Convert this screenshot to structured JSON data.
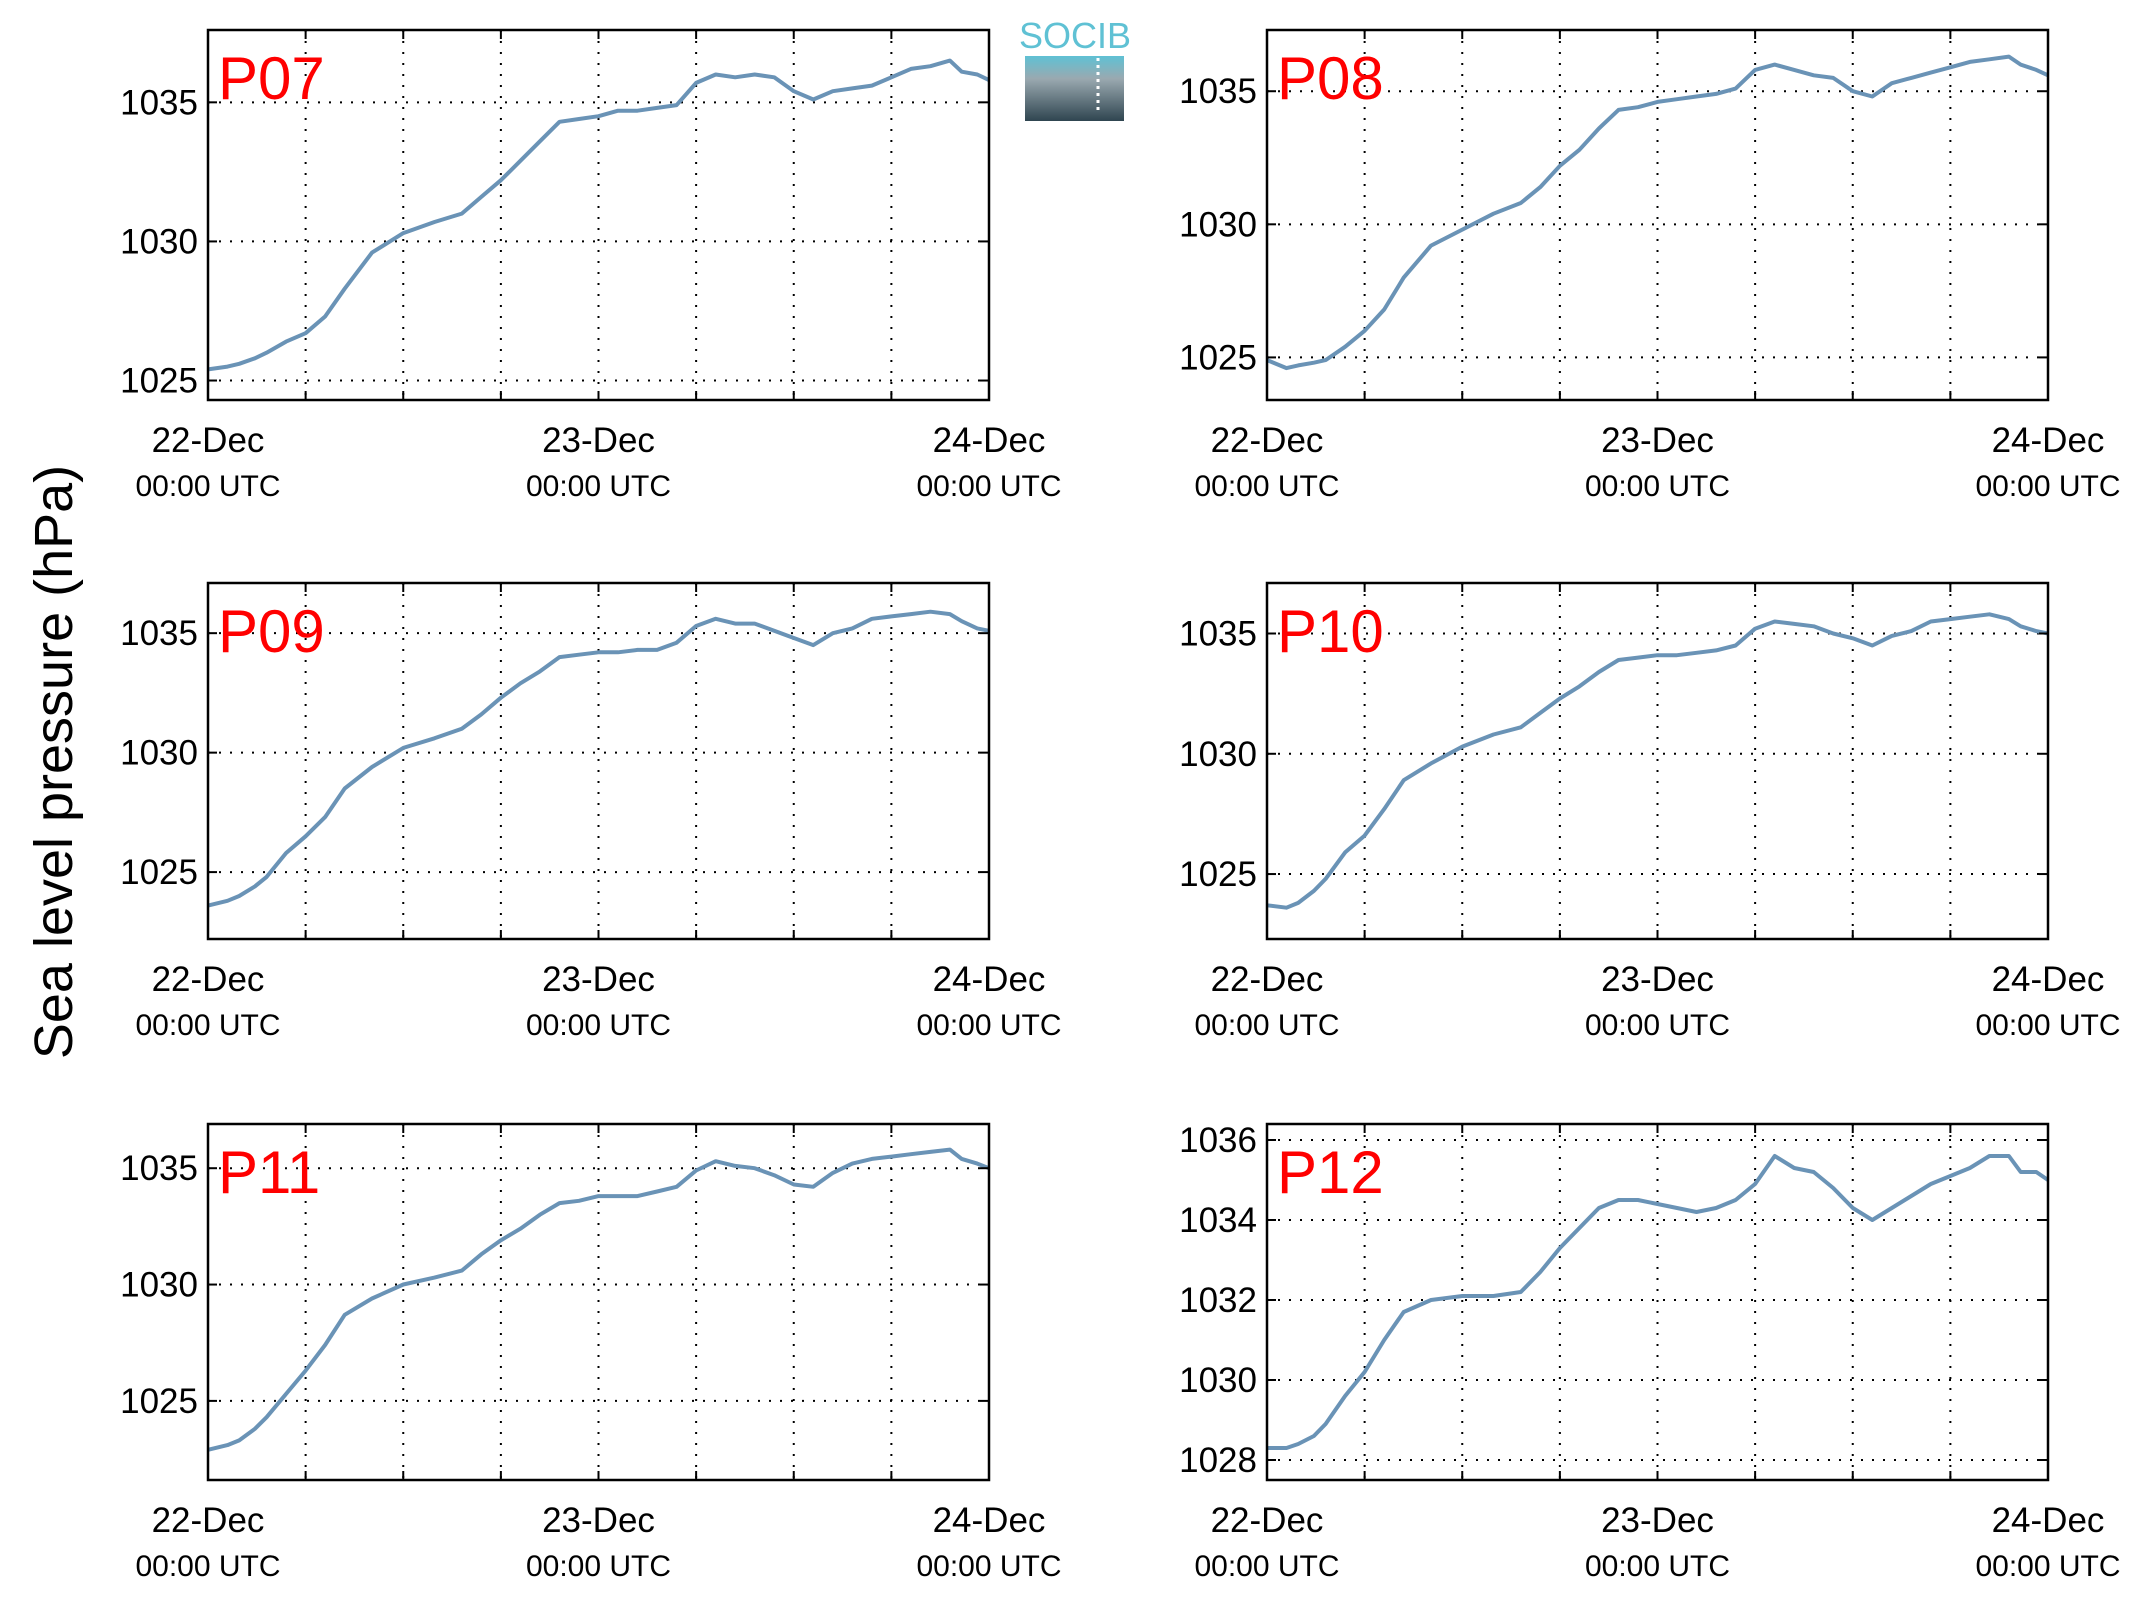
{
  "figure": {
    "ylabel": "Sea level pressure (hPa)",
    "logo_text": "SOCIB"
  },
  "colors": {
    "line": "#6a93b6",
    "panel_label": "#ff0000",
    "logo_top": "#5fc1d4",
    "logo_bottom": "#2f4550"
  },
  "chart_data": [
    {
      "type": "line",
      "label": "P07",
      "xticks": [
        {
          "date": "22-Dec",
          "time": "00:00 UTC"
        },
        {
          "date": "23-Dec",
          "time": "00:00 UTC"
        },
        {
          "date": "24-Dec",
          "time": "00:00 UTC"
        }
      ],
      "ylim": [
        1024.3,
        1037.6
      ],
      "yticks": [
        1025,
        1030,
        1035
      ],
      "grid": true,
      "series": [
        {
          "x": [
            0,
            0.05,
            0.08,
            0.12,
            0.15,
            0.2,
            0.25,
            0.3,
            0.35,
            0.42,
            0.5,
            0.58,
            0.65,
            0.7,
            0.75,
            0.8,
            0.85,
            0.9,
            0.95,
            1.0,
            1.05,
            1.1,
            1.15,
            1.2,
            1.25,
            1.3,
            1.35,
            1.4,
            1.45,
            1.5,
            1.55,
            1.6,
            1.65,
            1.7,
            1.75,
            1.8,
            1.85,
            1.9,
            1.93,
            1.97,
            2.0
          ],
          "y": [
            1025.4,
            1025.5,
            1025.6,
            1025.8,
            1026.0,
            1026.4,
            1026.7,
            1027.3,
            1028.3,
            1029.6,
            1030.3,
            1030.7,
            1031.0,
            1031.6,
            1032.2,
            1032.9,
            1033.6,
            1034.3,
            1034.4,
            1034.5,
            1034.7,
            1034.7,
            1034.8,
            1034.9,
            1035.7,
            1036.0,
            1035.9,
            1036.0,
            1035.9,
            1035.4,
            1035.1,
            1035.4,
            1035.5,
            1035.6,
            1035.9,
            1036.2,
            1036.3,
            1036.5,
            1036.1,
            1036.0,
            1035.8
          ]
        }
      ]
    },
    {
      "type": "line",
      "label": "P08",
      "xticks": [
        {
          "date": "22-Dec",
          "time": "00:00 UTC"
        },
        {
          "date": "23-Dec",
          "time": "00:00 UTC"
        },
        {
          "date": "24-Dec",
          "time": "00:00 UTC"
        }
      ],
      "ylim": [
        1023.4,
        1037.3
      ],
      "yticks": [
        1025,
        1030,
        1035
      ],
      "grid": true,
      "series": [
        {
          "x": [
            0,
            0.05,
            0.08,
            0.12,
            0.15,
            0.2,
            0.25,
            0.3,
            0.35,
            0.42,
            0.5,
            0.58,
            0.65,
            0.7,
            0.75,
            0.8,
            0.85,
            0.9,
            0.95,
            1.0,
            1.05,
            1.1,
            1.15,
            1.2,
            1.25,
            1.3,
            1.35,
            1.4,
            1.45,
            1.5,
            1.55,
            1.6,
            1.65,
            1.7,
            1.75,
            1.8,
            1.85,
            1.9,
            1.93,
            1.97,
            2.0
          ],
          "y": [
            1024.9,
            1024.6,
            1024.7,
            1024.8,
            1024.9,
            1025.4,
            1026.0,
            1026.8,
            1028.0,
            1029.2,
            1029.8,
            1030.4,
            1030.8,
            1031.4,
            1032.2,
            1032.8,
            1033.6,
            1034.3,
            1034.4,
            1034.6,
            1034.7,
            1034.8,
            1034.9,
            1035.1,
            1035.8,
            1036.0,
            1035.8,
            1035.6,
            1035.5,
            1035.0,
            1034.8,
            1035.3,
            1035.5,
            1035.7,
            1035.9,
            1036.1,
            1036.2,
            1036.3,
            1036.0,
            1035.8,
            1035.6
          ]
        }
      ]
    },
    {
      "type": "line",
      "label": "P09",
      "xticks": [
        {
          "date": "22-Dec",
          "time": "00:00 UTC"
        },
        {
          "date": "23-Dec",
          "time": "00:00 UTC"
        },
        {
          "date": "24-Dec",
          "time": "00:00 UTC"
        }
      ],
      "ylim": [
        1022.2,
        1037.1
      ],
      "yticks": [
        1025,
        1030,
        1035
      ],
      "grid": true,
      "series": [
        {
          "x": [
            0,
            0.05,
            0.08,
            0.12,
            0.15,
            0.2,
            0.25,
            0.3,
            0.35,
            0.42,
            0.5,
            0.58,
            0.65,
            0.7,
            0.75,
            0.8,
            0.85,
            0.9,
            0.95,
            1.0,
            1.05,
            1.1,
            1.15,
            1.2,
            1.25,
            1.3,
            1.35,
            1.4,
            1.45,
            1.5,
            1.55,
            1.6,
            1.65,
            1.7,
            1.75,
            1.8,
            1.85,
            1.9,
            1.93,
            1.97,
            2.0
          ],
          "y": [
            1023.6,
            1023.8,
            1024.0,
            1024.4,
            1024.8,
            1025.8,
            1026.5,
            1027.3,
            1028.5,
            1029.4,
            1030.2,
            1030.6,
            1031.0,
            1031.6,
            1032.3,
            1032.9,
            1033.4,
            1034.0,
            1034.1,
            1034.2,
            1034.2,
            1034.3,
            1034.3,
            1034.6,
            1035.3,
            1035.6,
            1035.4,
            1035.4,
            1035.1,
            1034.8,
            1034.5,
            1035.0,
            1035.2,
            1035.6,
            1035.7,
            1035.8,
            1035.9,
            1035.8,
            1035.5,
            1035.2,
            1035.1
          ]
        }
      ]
    },
    {
      "type": "line",
      "label": "P10",
      "xticks": [
        {
          "date": "22-Dec",
          "time": "00:00 UTC"
        },
        {
          "date": "23-Dec",
          "time": "00:00 UTC"
        },
        {
          "date": "24-Dec",
          "time": "00:00 UTC"
        }
      ],
      "ylim": [
        1022.3,
        1037.1
      ],
      "yticks": [
        1025,
        1030,
        1035
      ],
      "grid": true,
      "series": [
        {
          "x": [
            0,
            0.05,
            0.08,
            0.12,
            0.15,
            0.2,
            0.25,
            0.3,
            0.35,
            0.42,
            0.5,
            0.58,
            0.65,
            0.7,
            0.75,
            0.8,
            0.85,
            0.9,
            0.95,
            1.0,
            1.05,
            1.1,
            1.15,
            1.2,
            1.25,
            1.3,
            1.35,
            1.4,
            1.45,
            1.5,
            1.55,
            1.6,
            1.65,
            1.7,
            1.75,
            1.8,
            1.85,
            1.9,
            1.93,
            1.97,
            2.0
          ],
          "y": [
            1023.7,
            1023.6,
            1023.8,
            1024.3,
            1024.8,
            1025.9,
            1026.6,
            1027.7,
            1028.9,
            1029.6,
            1030.3,
            1030.8,
            1031.1,
            1031.7,
            1032.3,
            1032.8,
            1033.4,
            1033.9,
            1034.0,
            1034.1,
            1034.1,
            1034.2,
            1034.3,
            1034.5,
            1035.2,
            1035.5,
            1035.4,
            1035.3,
            1035.0,
            1034.8,
            1034.5,
            1034.9,
            1035.1,
            1035.5,
            1035.6,
            1035.7,
            1035.8,
            1035.6,
            1035.3,
            1035.1,
            1035.0
          ]
        }
      ]
    },
    {
      "type": "line",
      "label": "P11",
      "xticks": [
        {
          "date": "22-Dec",
          "time": "00:00 UTC"
        },
        {
          "date": "23-Dec",
          "time": "00:00 UTC"
        },
        {
          "date": "24-Dec",
          "time": "00:00 UTC"
        }
      ],
      "ylim": [
        1021.6,
        1036.9
      ],
      "yticks": [
        1025,
        1030,
        1035
      ],
      "grid": true,
      "series": [
        {
          "x": [
            0,
            0.05,
            0.08,
            0.12,
            0.15,
            0.2,
            0.25,
            0.3,
            0.35,
            0.42,
            0.5,
            0.58,
            0.65,
            0.7,
            0.75,
            0.8,
            0.85,
            0.9,
            0.95,
            1.0,
            1.05,
            1.1,
            1.15,
            1.2,
            1.25,
            1.3,
            1.35,
            1.4,
            1.45,
            1.5,
            1.55,
            1.6,
            1.65,
            1.7,
            1.75,
            1.8,
            1.85,
            1.9,
            1.93,
            1.97,
            2.0
          ],
          "y": [
            1022.9,
            1023.1,
            1023.3,
            1023.8,
            1024.3,
            1025.3,
            1026.3,
            1027.4,
            1028.7,
            1029.4,
            1030.0,
            1030.3,
            1030.6,
            1031.3,
            1031.9,
            1032.4,
            1033.0,
            1033.5,
            1033.6,
            1033.8,
            1033.8,
            1033.8,
            1034.0,
            1034.2,
            1034.9,
            1035.3,
            1035.1,
            1035.0,
            1034.7,
            1034.3,
            1034.2,
            1034.8,
            1035.2,
            1035.4,
            1035.5,
            1035.6,
            1035.7,
            1035.8,
            1035.4,
            1035.2,
            1035.0
          ]
        }
      ]
    },
    {
      "type": "line",
      "label": "P12",
      "xticks": [
        {
          "date": "22-Dec",
          "time": "00:00 UTC"
        },
        {
          "date": "23-Dec",
          "time": "00:00 UTC"
        },
        {
          "date": "24-Dec",
          "time": "00:00 UTC"
        }
      ],
      "ylim": [
        1027.5,
        1036.4
      ],
      "yticks": [
        1028,
        1030,
        1032,
        1034,
        1036
      ],
      "grid": true,
      "series": [
        {
          "x": [
            0,
            0.05,
            0.08,
            0.12,
            0.15,
            0.2,
            0.25,
            0.3,
            0.35,
            0.42,
            0.5,
            0.58,
            0.65,
            0.7,
            0.75,
            0.8,
            0.85,
            0.9,
            0.95,
            1.0,
            1.05,
            1.1,
            1.15,
            1.2,
            1.25,
            1.3,
            1.35,
            1.4,
            1.45,
            1.5,
            1.55,
            1.6,
            1.65,
            1.7,
            1.75,
            1.8,
            1.85,
            1.9,
            1.93,
            1.97,
            2.0
          ],
          "y": [
            1028.3,
            1028.3,
            1028.4,
            1028.6,
            1028.9,
            1029.6,
            1030.2,
            1031.0,
            1031.7,
            1032.0,
            1032.1,
            1032.1,
            1032.2,
            1032.7,
            1033.3,
            1033.8,
            1034.3,
            1034.5,
            1034.5,
            1034.4,
            1034.3,
            1034.2,
            1034.3,
            1034.5,
            1034.9,
            1035.6,
            1035.3,
            1035.2,
            1034.8,
            1034.3,
            1034.0,
            1034.3,
            1034.6,
            1034.9,
            1035.1,
            1035.3,
            1035.6,
            1035.6,
            1035.2,
            1035.2,
            1035.0
          ]
        }
      ]
    }
  ]
}
